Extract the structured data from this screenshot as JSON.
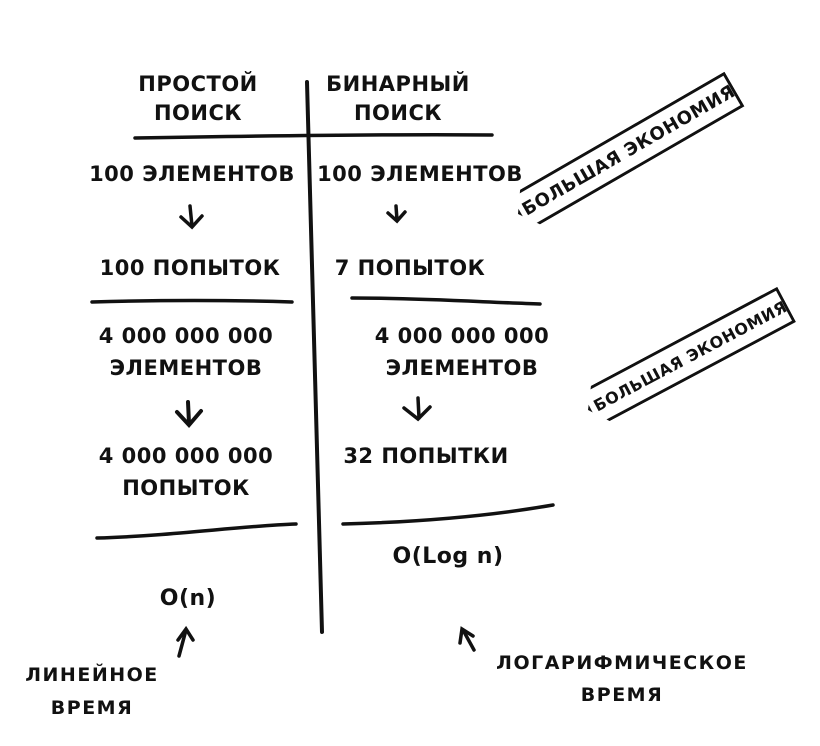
{
  "left_column": {
    "header_line1": "ПРОСТОЙ",
    "header_line2": "ПОИСК",
    "row1_elements": "100 ЭЛЕМЕНТОВ",
    "row1_attempts": "100 ПОПЫТОК",
    "row2_elements_count": "4 000 000 000",
    "row2_elements_word": "ЭЛЕМЕНТОВ",
    "row2_attempts_count": "4 000 000 000",
    "row2_attempts_word": "ПОПЫТОК",
    "complexity": "O(n)",
    "note_line1": "ЛИНЕЙНОЕ",
    "note_line2": "ВРЕМЯ"
  },
  "right_column": {
    "header_line1": "БИНАРНЫЙ",
    "header_line2": "ПОИСК",
    "row1_elements": "100 ЭЛЕМЕНТОВ",
    "row1_attempts": "7 ПОПЫТОК",
    "row2_elements_count": "4 000 000 000",
    "row2_elements_word": "ЭЛЕМЕНТОВ",
    "row2_attempts": "32 ПОПЫТКИ",
    "complexity": "O(Log n)",
    "note_line1": "ЛОГАРИФМИЧЕСКОЕ",
    "note_line2": "ВРЕМЯ"
  },
  "tags": {
    "tag1": "БОЛЬШАЯ ЭКОНОМИЯ!",
    "tag2": "БОЛЬШАЯ ЭКОНОМИЯ!"
  }
}
